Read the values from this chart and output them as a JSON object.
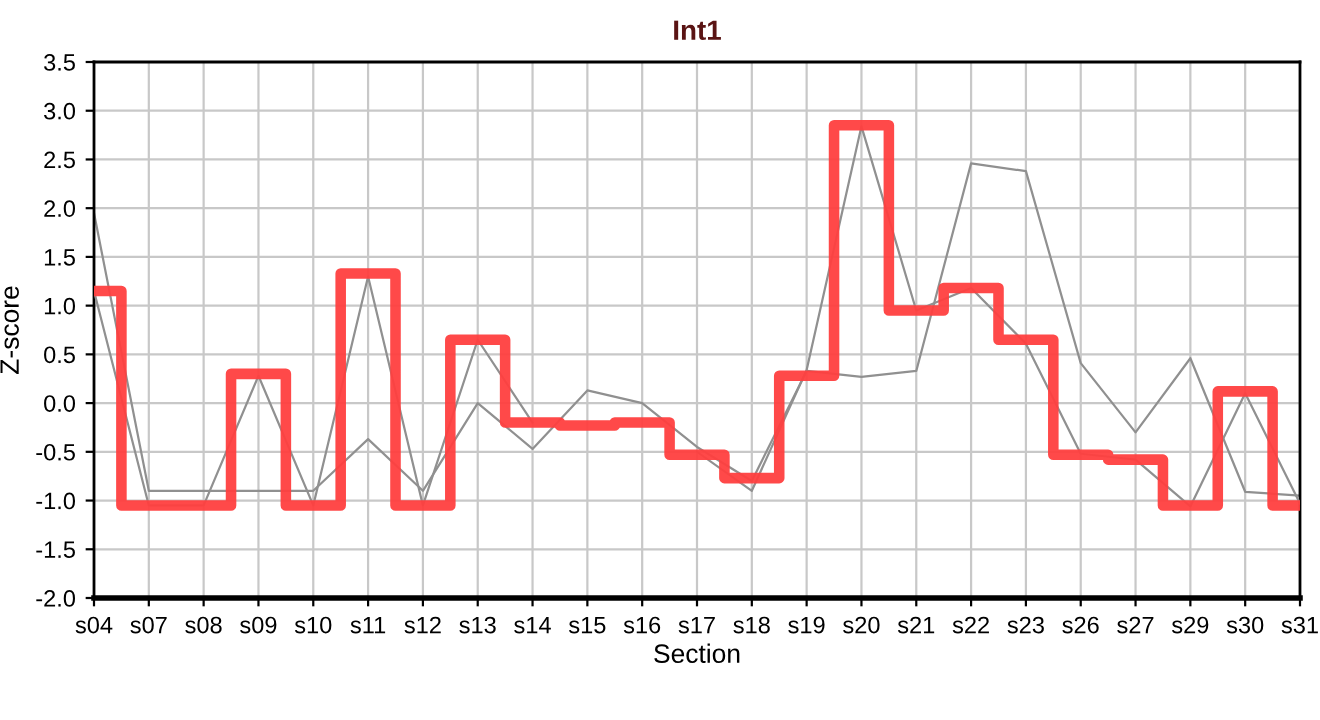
{
  "chart_data": {
    "type": "line",
    "title": "Int1",
    "xlabel": "Section",
    "ylabel": "Z-score",
    "categories": [
      "s04",
      "s07",
      "s08",
      "s09",
      "s10",
      "s11",
      "s12",
      "s13",
      "s14",
      "s15",
      "s16",
      "s17",
      "s18",
      "s19",
      "s20",
      "s21",
      "s22",
      "s23",
      "s26",
      "s27",
      "s29",
      "s30",
      "s31"
    ],
    "series": [
      {
        "color": "#909090",
        "values": [
          1.95,
          -0.9,
          -0.9,
          -0.9,
          -0.9,
          -0.37,
          -0.9,
          0.0,
          -0.47,
          0.13,
          0.0,
          -0.45,
          -0.8,
          0.33,
          0.27,
          0.33,
          2.46,
          2.38,
          0.41,
          -0.3,
          0.46,
          -0.91,
          -0.95
        ]
      },
      {
        "color": "#909090",
        "values": [
          1.15,
          -1.05,
          -1.05,
          0.28,
          -1.05,
          1.3,
          -1.05,
          0.65,
          -0.2,
          null,
          null,
          -0.5,
          -0.9,
          0.34,
          2.84,
          0.95,
          1.18,
          0.61,
          -0.52,
          -0.58,
          -1.06,
          0.1,
          -1.03
        ]
      },
      {
        "type": "step",
        "color": "#ff3f3f",
        "values": [
          1.15,
          -1.05,
          -1.05,
          0.3,
          -1.05,
          1.33,
          -1.05,
          0.65,
          -0.2,
          -0.23,
          -0.2,
          -0.53,
          -0.77,
          0.28,
          2.85,
          0.95,
          1.18,
          0.65,
          -0.53,
          -0.58,
          -1.05,
          0.12,
          -1.05
        ]
      }
    ],
    "ylim": [
      -2.0,
      3.5
    ],
    "yticks": [
      {
        "value": -2,
        "label": "-2.0"
      },
      {
        "value": -1.5,
        "label": "-1.5"
      },
      {
        "value": -1,
        "label": "-1.0"
      },
      {
        "value": -0.5,
        "label": "-0.5"
      },
      {
        "value": 0,
        "label": "0.0"
      },
      {
        "value": 0.5,
        "label": "0.5"
      },
      {
        "value": 1,
        "label": "1.0"
      },
      {
        "value": 1.5,
        "label": "1.5"
      },
      {
        "value": 2,
        "label": "2.0"
      },
      {
        "value": 2.5,
        "label": "2.5"
      },
      {
        "value": 3,
        "label": "3.0"
      },
      {
        "value": 3.5,
        "label": "3.5"
      }
    ],
    "grid": true
  }
}
